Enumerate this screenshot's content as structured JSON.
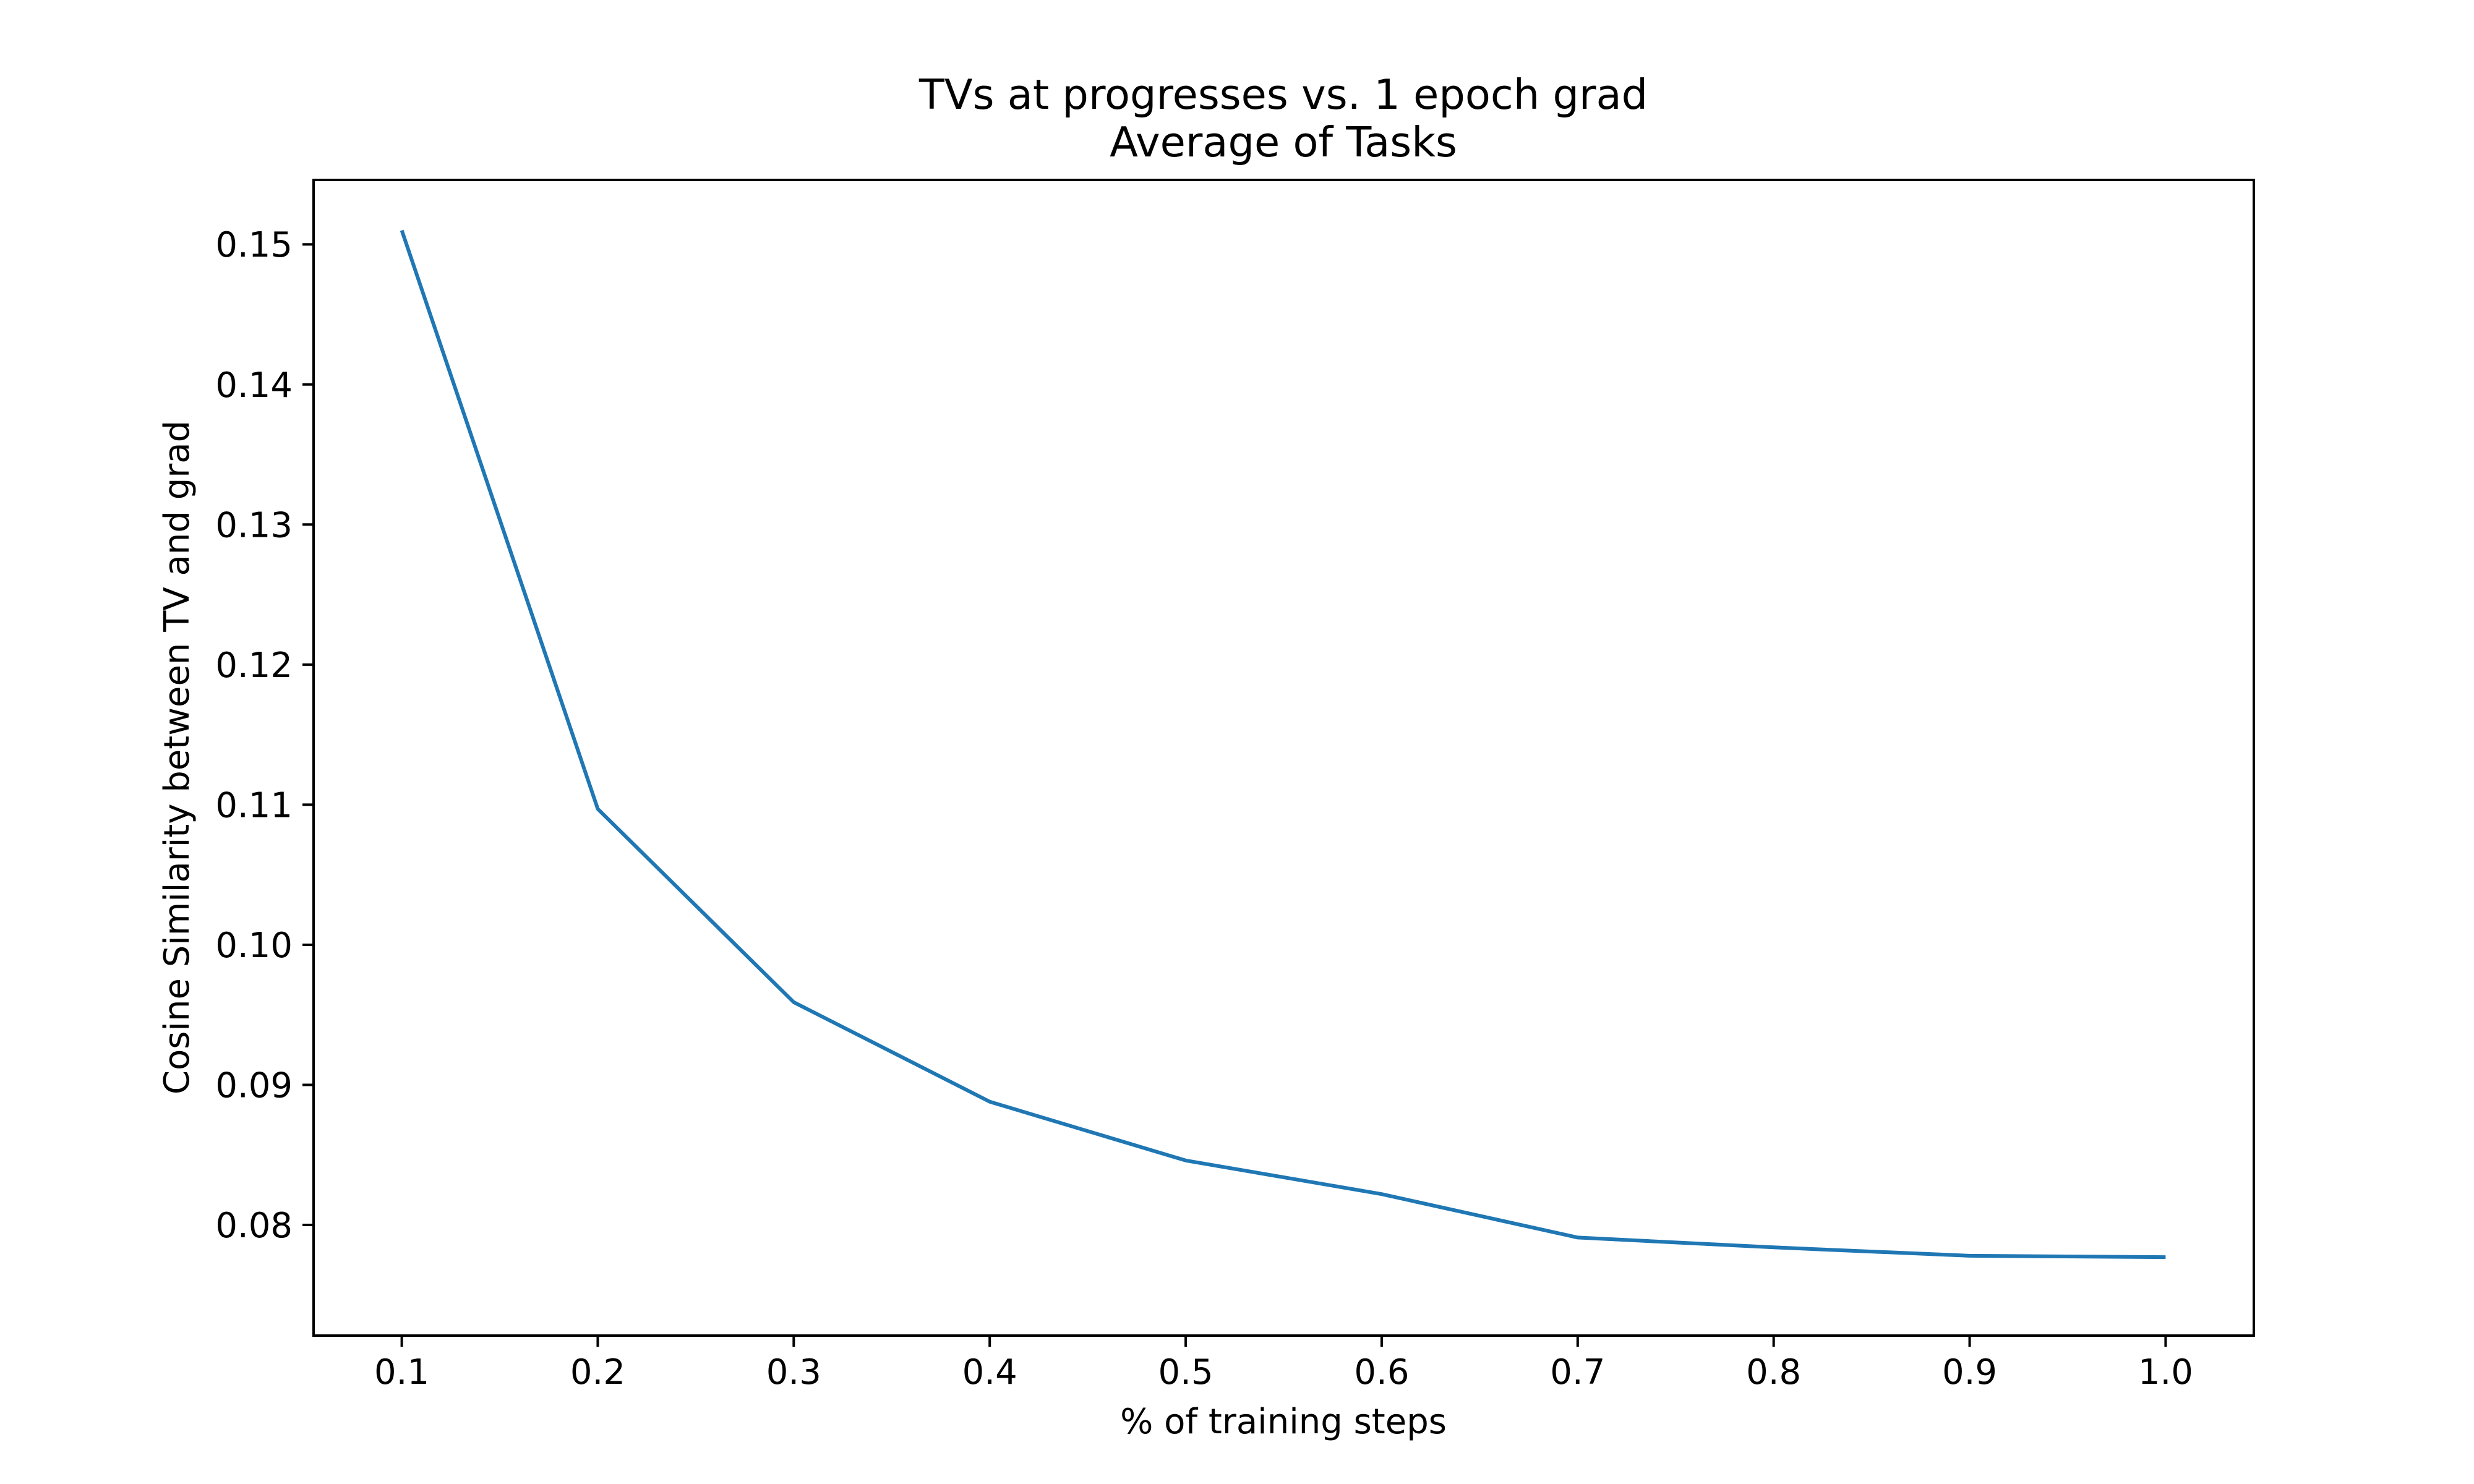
{
  "chart_data": {
    "type": "line",
    "title": "TVs at progresses vs. 1 epoch grad",
    "subtitle": "Average of Tasks",
    "xlabel": "% of training steps",
    "ylabel": "Cosine Similarity between TV and grad",
    "x": [
      0.1,
      0.2,
      0.3,
      0.4,
      0.5,
      0.6,
      0.7,
      0.8,
      0.9,
      1.0
    ],
    "series": [
      {
        "values": [
          0.151,
          0.1097,
          0.0959,
          0.0888,
          0.0846,
          0.0822,
          0.0791,
          0.0784,
          0.0778,
          0.0777
        ],
        "color": "#1f77b4"
      }
    ],
    "xlim": [
      0.055,
      1.045
    ],
    "ylim": [
      0.0721,
      0.1546
    ],
    "xticks": [
      "0.1",
      "0.2",
      "0.3",
      "0.4",
      "0.5",
      "0.6",
      "0.7",
      "0.8",
      "0.9",
      "1.0"
    ],
    "yticks": [
      "0.08",
      "0.09",
      "0.10",
      "0.11",
      "0.12",
      "0.13",
      "0.14",
      "0.15"
    ],
    "grid": false,
    "legend": false
  }
}
